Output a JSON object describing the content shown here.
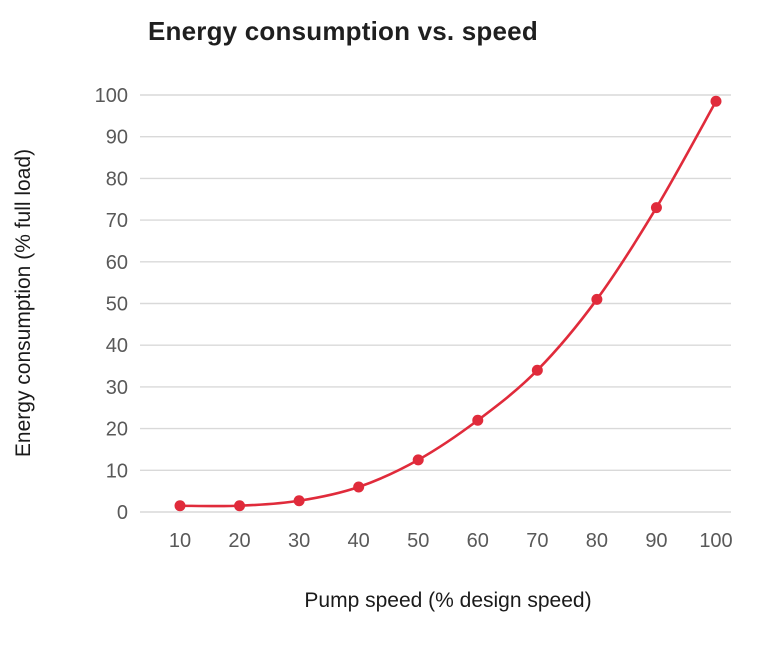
{
  "chart_data": {
    "type": "line",
    "title": "Energy consumption vs. speed",
    "xlabel": "Pump speed (% design speed)",
    "ylabel": "Energy consumption (% full load)",
    "x": [
      10,
      20,
      30,
      40,
      50,
      60,
      70,
      80,
      90,
      100
    ],
    "values": [
      1.5,
      1.5,
      2.7,
      6,
      12.5,
      22,
      34,
      51,
      73,
      98.5
    ],
    "xtick_labels": [
      "10",
      "20",
      "30",
      "40",
      "50",
      "60",
      "70",
      "80",
      "90",
      "100"
    ],
    "ytick_labels": [
      "0",
      "10",
      "20",
      "30",
      "40",
      "50",
      "60",
      "70",
      "80",
      "90",
      "100"
    ],
    "yticks": [
      0,
      10,
      20,
      30,
      40,
      50,
      60,
      70,
      80,
      90,
      100
    ],
    "xlim": [
      10,
      100
    ],
    "ylim": [
      0,
      100
    ],
    "grid": "horizontal",
    "legend": "none",
    "colors": {
      "line": "#e02b3b",
      "point": "#e02b3b",
      "gridline": "#d9d9d9",
      "tick_text": "#595959",
      "axis_label": "#1a1a1a",
      "title": "#1f1f1f",
      "background": "#ffffff"
    }
  }
}
